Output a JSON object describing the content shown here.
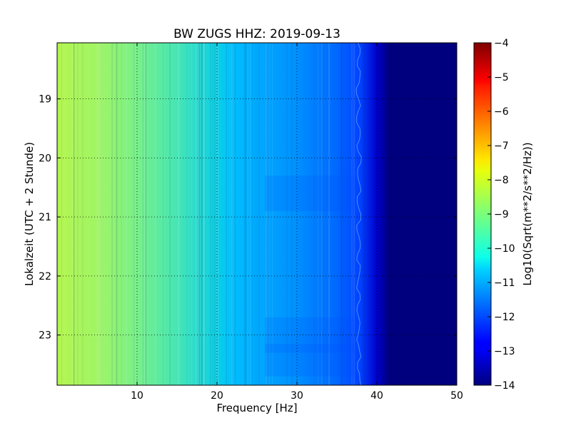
{
  "chart_data": {
    "type": "heatmap",
    "title": "BW ZUGS HHZ: 2019-09-13",
    "xlabel": "Frequency [Hz]",
    "ylabel": "Lokalzeit (UTC + 2 Stunde)",
    "xlim": [
      0,
      50
    ],
    "ylim": [
      23.85,
      18.05
    ],
    "xticks": [
      10,
      20,
      30,
      40,
      50
    ],
    "xtick_labels": [
      "10",
      "20",
      "30",
      "40",
      "50"
    ],
    "yticks": [
      19,
      20,
      21,
      22,
      23
    ],
    "ytick_labels": [
      "19",
      "20",
      "21",
      "22",
      "23"
    ],
    "grid": true,
    "colormap": "jet",
    "colorbar": {
      "label": "Log10(Sqrt(m**2/s**2/Hz))",
      "range": [
        -14,
        -4
      ],
      "ticks": [
        -4,
        -5,
        -6,
        -7,
        -8,
        -9,
        -10,
        -11,
        -12,
        -13,
        -14
      ],
      "tick_labels": [
        "−4",
        "−5",
        "−6",
        "−7",
        "−8",
        "−9",
        "−10",
        "−11",
        "−12",
        "−13",
        "−14"
      ]
    },
    "spectrum_profile": {
      "frequency_hz": [
        0,
        5,
        10,
        15,
        20,
        22,
        25,
        30,
        35,
        38,
        40,
        41,
        50
      ],
      "log10_amplitude": [
        -8.7,
        -9.0,
        -9.3,
        -9.8,
        -10.5,
        -10.8,
        -11.2,
        -11.7,
        -12.1,
        -12.6,
        -13.8,
        -14.0,
        -14.0
      ]
    }
  }
}
